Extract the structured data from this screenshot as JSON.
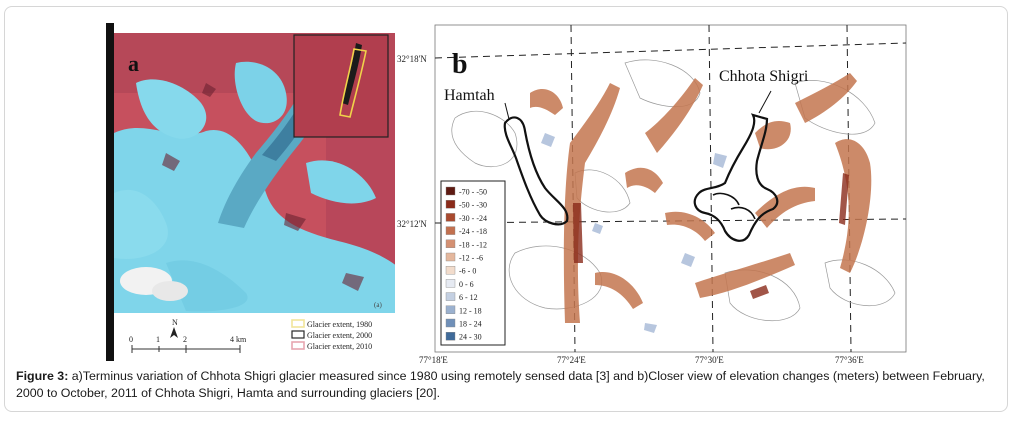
{
  "panel_a": {
    "letter": "a",
    "scale_labels": [
      "0",
      "1",
      "2",
      "4 km"
    ],
    "north": "N",
    "corner_mark": "(a)",
    "legend": [
      {
        "label": "Glacier extent, 1980",
        "color": "#f2e59a"
      },
      {
        "label": "Glacier extent, 2000",
        "color": "#2a2a2a"
      },
      {
        "label": "Glacier extent, 2010",
        "color": "#e7a7b0"
      }
    ]
  },
  "panel_b": {
    "letter": "b",
    "glacier_labels": {
      "hamtah": "Hamtah",
      "chhota_shigri": "Chhota Shigri"
    },
    "lat_ticks": [
      "32°18'N",
      "32°12'N"
    ],
    "lon_ticks": [
      "77°18'E",
      "77°24'E",
      "77°30'E",
      "77°36'E"
    ],
    "legend": [
      {
        "label": "-70 - -50",
        "color": "#5e1a12"
      },
      {
        "label": "-50 - -30",
        "color": "#8a2b1a"
      },
      {
        "label": "-30 - -24",
        "color": "#a94a2f"
      },
      {
        "label": "-24 - -18",
        "color": "#c2704f"
      },
      {
        "label": "-18 - -12",
        "color": "#d49072"
      },
      {
        "label": "-12 - -6",
        "color": "#e4b79d"
      },
      {
        "label": "-6 - 0",
        "color": "#f2dccc"
      },
      {
        "label": "0 - 6",
        "color": "#e6eaf2"
      },
      {
        "label": "6 - 12",
        "color": "#c4d0e2"
      },
      {
        "label": "12 - 18",
        "color": "#9bb1cf"
      },
      {
        "label": "18 - 24",
        "color": "#6f8fb8"
      },
      {
        "label": "24 - 30",
        "color": "#3f6a99"
      }
    ]
  },
  "caption": {
    "label": "Figure 3:",
    "text": " a)Terminus variation of Chhota Shigri glacier measured since 1980 using remotely sensed data [3] and b)Closer view of elevation changes (meters) between February, 2000 to October, 2011 of Chhota Shigri, Hamta and surrounding glaciers [20]."
  }
}
